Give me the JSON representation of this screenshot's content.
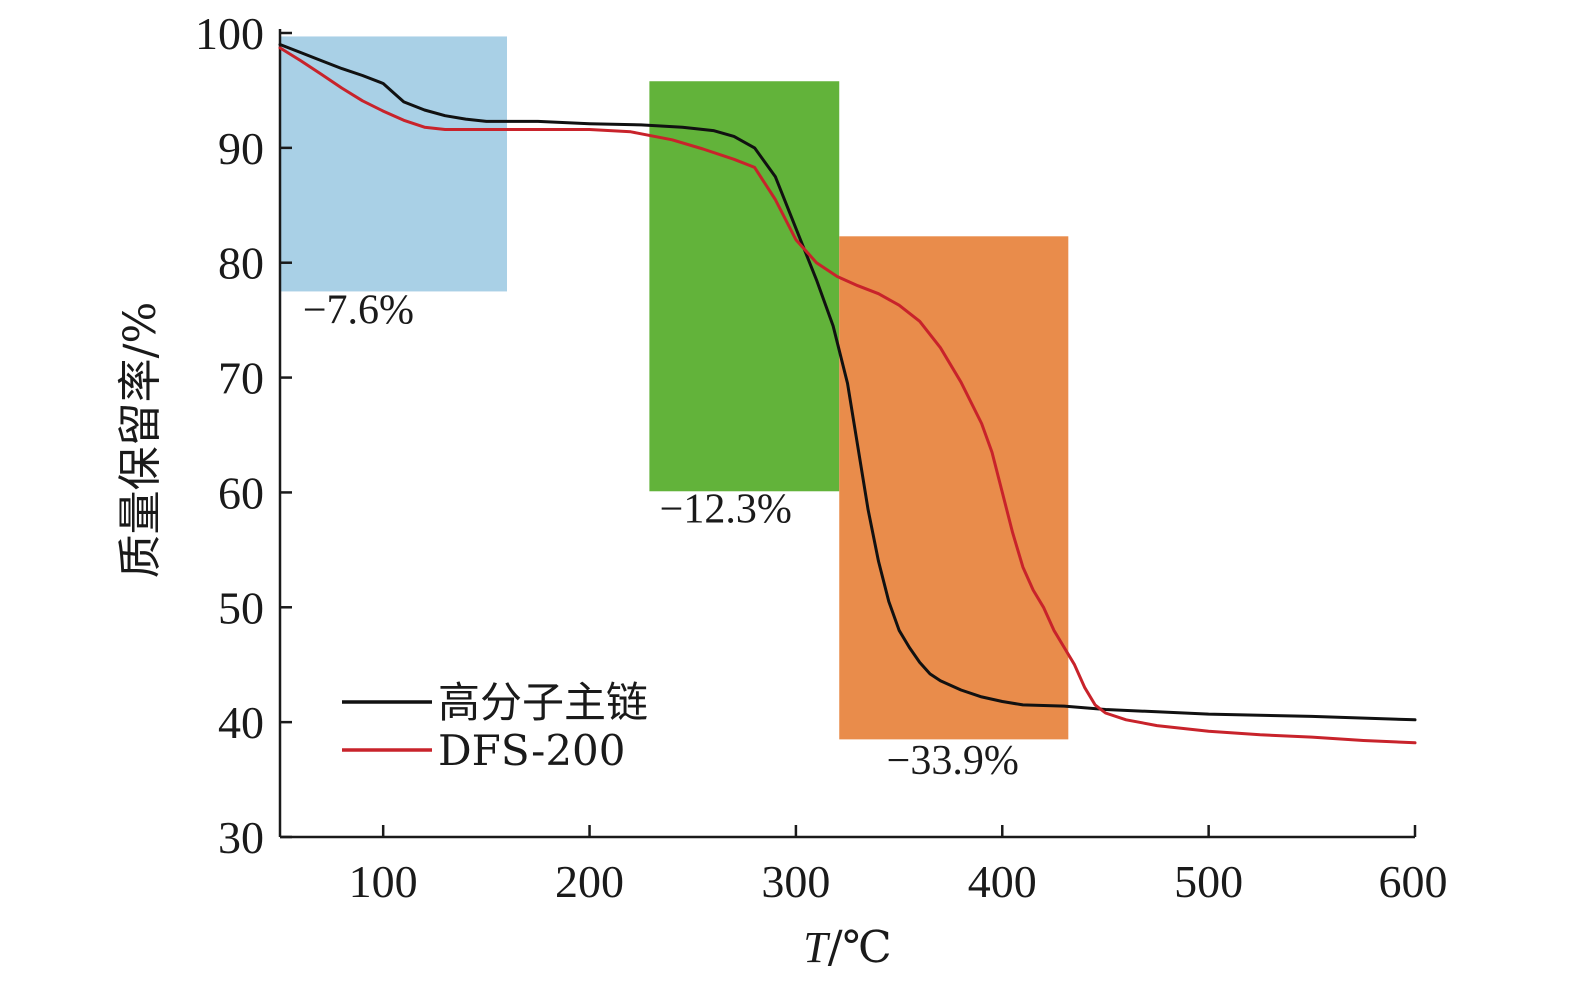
{
  "chart_data": {
    "type": "line",
    "xlabel_italic": "T",
    "xlabel_rest": "/℃",
    "ylabel": "质量保留率/%",
    "xlim": [
      50,
      600
    ],
    "ylim": [
      30,
      100
    ],
    "xticks": [
      100,
      200,
      300,
      400,
      500,
      600
    ],
    "yticks": [
      30,
      40,
      50,
      60,
      70,
      80,
      90,
      100
    ],
    "grid": false,
    "legend_position": "bottom-left",
    "series": [
      {
        "name": "高分子主链",
        "color": "#111111",
        "points": [
          [
            50,
            99
          ],
          [
            60,
            98.3
          ],
          [
            70,
            97.6
          ],
          [
            80,
            96.9
          ],
          [
            90,
            96.3
          ],
          [
            100,
            95.6
          ],
          [
            105,
            94.8
          ],
          [
            110,
            94.0
          ],
          [
            120,
            93.3
          ],
          [
            130,
            92.8
          ],
          [
            140,
            92.5
          ],
          [
            150,
            92.3
          ],
          [
            175,
            92.3
          ],
          [
            200,
            92.1
          ],
          [
            225,
            92.0
          ],
          [
            245,
            91.8
          ],
          [
            260,
            91.5
          ],
          [
            270,
            91.0
          ],
          [
            280,
            90.0
          ],
          [
            290,
            87.5
          ],
          [
            300,
            83.0
          ],
          [
            310,
            78.5
          ],
          [
            318,
            74.5
          ],
          [
            325,
            69.5
          ],
          [
            330,
            64.0
          ],
          [
            335,
            58.5
          ],
          [
            340,
            54.0
          ],
          [
            345,
            50.5
          ],
          [
            350,
            48.0
          ],
          [
            355,
            46.5
          ],
          [
            360,
            45.2
          ],
          [
            365,
            44.2
          ],
          [
            370,
            43.6
          ],
          [
            380,
            42.8
          ],
          [
            390,
            42.2
          ],
          [
            400,
            41.8
          ],
          [
            410,
            41.5
          ],
          [
            430,
            41.4
          ],
          [
            450,
            41.1
          ],
          [
            475,
            40.9
          ],
          [
            500,
            40.7
          ],
          [
            550,
            40.5
          ],
          [
            600,
            40.2
          ]
        ]
      },
      {
        "name": "DFS-200",
        "color": "#c8232b",
        "points": [
          [
            50,
            98.7
          ],
          [
            60,
            97.6
          ],
          [
            70,
            96.4
          ],
          [
            80,
            95.2
          ],
          [
            90,
            94.1
          ],
          [
            100,
            93.2
          ],
          [
            110,
            92.4
          ],
          [
            120,
            91.8
          ],
          [
            130,
            91.6
          ],
          [
            150,
            91.6
          ],
          [
            175,
            91.6
          ],
          [
            200,
            91.6
          ],
          [
            220,
            91.4
          ],
          [
            240,
            90.7
          ],
          [
            255,
            89.9
          ],
          [
            270,
            89.0
          ],
          [
            280,
            88.3
          ],
          [
            290,
            85.5
          ],
          [
            300,
            82.0
          ],
          [
            310,
            80.0
          ],
          [
            320,
            78.8
          ],
          [
            330,
            78.0
          ],
          [
            340,
            77.3
          ],
          [
            350,
            76.3
          ],
          [
            360,
            74.9
          ],
          [
            370,
            72.6
          ],
          [
            380,
            69.6
          ],
          [
            390,
            66.0
          ],
          [
            395,
            63.5
          ],
          [
            400,
            60.0
          ],
          [
            405,
            56.5
          ],
          [
            410,
            53.5
          ],
          [
            415,
            51.5
          ],
          [
            420,
            50.0
          ],
          [
            425,
            48.0
          ],
          [
            430,
            46.5
          ],
          [
            435,
            45.0
          ],
          [
            440,
            43.0
          ],
          [
            445,
            41.5
          ],
          [
            450,
            40.8
          ],
          [
            460,
            40.2
          ],
          [
            475,
            39.7
          ],
          [
            500,
            39.2
          ],
          [
            525,
            38.9
          ],
          [
            550,
            38.7
          ],
          [
            575,
            38.4
          ],
          [
            600,
            38.2
          ]
        ]
      }
    ],
    "regions": [
      {
        "x0": 50,
        "x1": 160,
        "y0": 77.5,
        "y1": 99.7,
        "color": "#a9d0e6",
        "label": "−7.6%",
        "label_x": 88,
        "label_y": 74.7
      },
      {
        "x0": 229,
        "x1": 321,
        "y0": 60.1,
        "y1": 95.8,
        "color": "#62b33a",
        "label": "−12.3%",
        "label_x": 266,
        "label_y": 57.4
      },
      {
        "x0": 321,
        "x1": 432,
        "y0": 38.5,
        "y1": 82.3,
        "color": "#e98c4b",
        "label": "−33.9%",
        "label_x": 376,
        "label_y": 35.5
      }
    ]
  }
}
